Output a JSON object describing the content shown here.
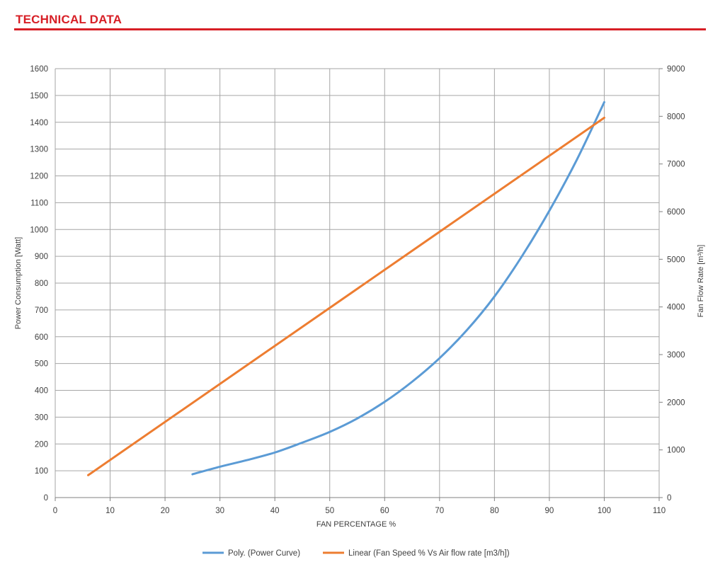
{
  "header": {
    "title": "TECHNICAL DATA",
    "rule_color": "#d71f26"
  },
  "chart_data": {
    "type": "line",
    "title": "",
    "xlabel": "FAN PERCENTAGE %",
    "ylabel": "Power Consumption [Watt]",
    "y2label": "Fan Flow Rate [m³/h]",
    "xlim": [
      0,
      110
    ],
    "ylim": [
      0,
      1600
    ],
    "y2lim": [
      0,
      9000
    ],
    "x_ticks": [
      0,
      10,
      20,
      30,
      40,
      50,
      60,
      70,
      80,
      90,
      100,
      110
    ],
    "y_ticks": [
      0,
      100,
      200,
      300,
      400,
      500,
      600,
      700,
      800,
      900,
      1000,
      1100,
      1200,
      1300,
      1400,
      1500,
      1600
    ],
    "y2_ticks": [
      0,
      1000,
      2000,
      3000,
      4000,
      5000,
      6000,
      7000,
      8000,
      9000
    ],
    "grid": true,
    "legend_position": "bottom",
    "series": [
      {
        "name": "Poly. (Power Curve)",
        "axis": "left",
        "color": "#5b9bd5",
        "x": [
          25,
          30,
          35,
          40,
          45,
          50,
          55,
          60,
          65,
          70,
          75,
          80,
          85,
          90,
          95,
          100
        ],
        "y": [
          87,
          115,
          140,
          168,
          205,
          245,
          295,
          357,
          432,
          520,
          625,
          750,
          900,
          1070,
          1260,
          1475
        ]
      },
      {
        "name": "Linear (Fan Speed % Vs Air flow rate [m3/h])",
        "axis": "right",
        "color": "#ed7d31",
        "x": [
          6,
          100
        ],
        "y": [
          470,
          7970
        ]
      }
    ]
  }
}
